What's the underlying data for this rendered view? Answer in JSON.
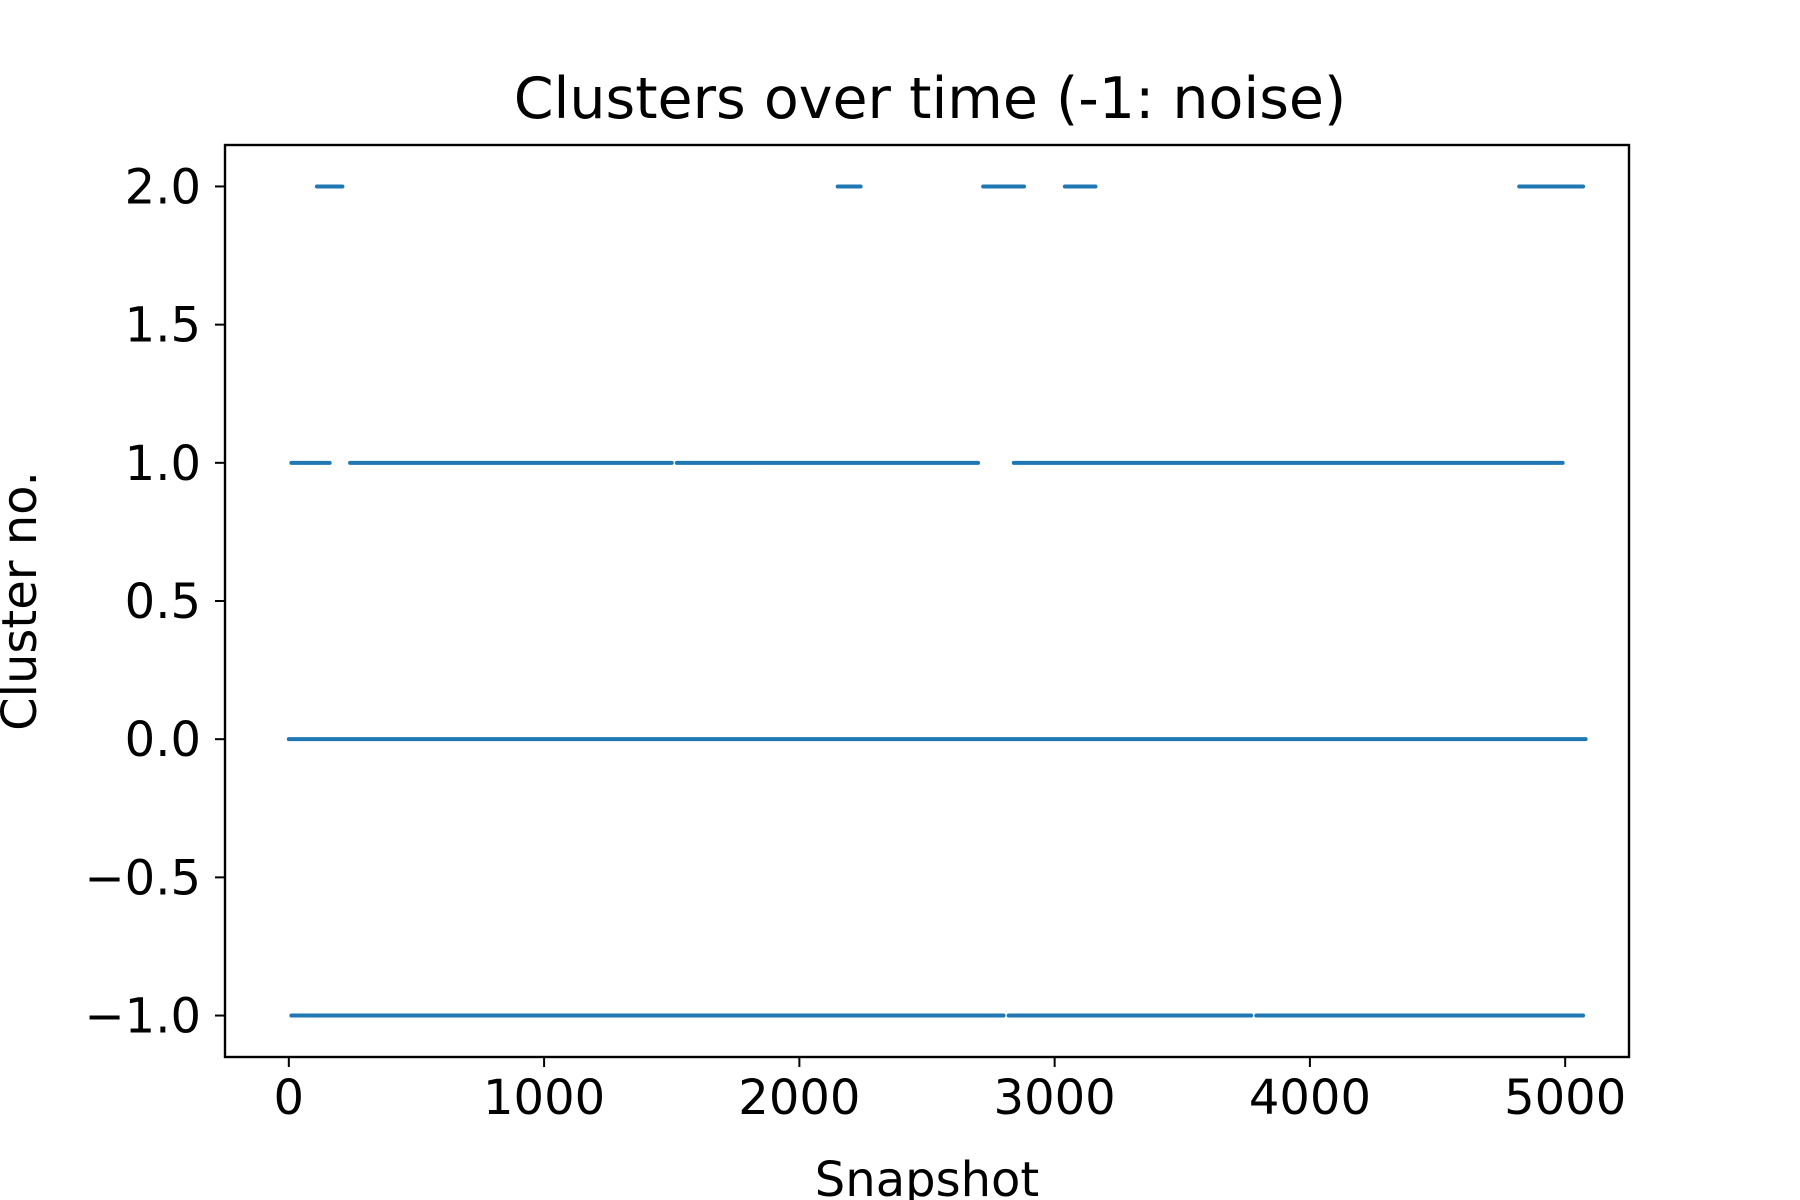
{
  "chart_data": {
    "type": "scatter",
    "title": "Clusters over time (-1: noise)",
    "xlabel": "Snapshot",
    "ylabel": "Cluster no.",
    "xlim": [
      -250,
      5250
    ],
    "ylim": [
      -1.15,
      2.15
    ],
    "xticks": [
      0,
      1000,
      2000,
      3000,
      4000,
      5000
    ],
    "xtick_labels": [
      "0",
      "1000",
      "2000",
      "3000",
      "4000",
      "5000"
    ],
    "yticks": [
      -1.0,
      -0.5,
      0.0,
      0.5,
      1.0,
      1.5,
      2.0
    ],
    "ytick_labels": [
      "−1.0",
      "−0.5",
      "0.0",
      "0.5",
      "1.0",
      "1.5",
      "2.0"
    ],
    "grid": false,
    "color": "#1f77b4",
    "series": [
      {
        "segments": [
          {
            "y": 0.0,
            "x": [
              0,
              5080
            ]
          },
          {
            "y": -1.0,
            "x": [
              10,
              2800
            ]
          },
          {
            "y": -1.0,
            "x": [
              2820,
              3770
            ]
          },
          {
            "y": -1.0,
            "x": [
              3790,
              5070
            ]
          },
          {
            "y": 1.0,
            "x": [
              10,
              160
            ]
          },
          {
            "y": 1.0,
            "x": [
              240,
              1500
            ]
          },
          {
            "y": 1.0,
            "x": [
              1520,
              2700
            ]
          },
          {
            "y": 1.0,
            "x": [
              2840,
              4990
            ]
          },
          {
            "y": 2.0,
            "x": [
              110,
              210
            ]
          },
          {
            "y": 2.0,
            "x": [
              2150,
              2240
            ]
          },
          {
            "y": 2.0,
            "x": [
              2720,
              2880
            ]
          },
          {
            "y": 2.0,
            "x": [
              3040,
              3160
            ]
          },
          {
            "y": 2.0,
            "x": [
              4820,
              5070
            ]
          }
        ]
      }
    ]
  }
}
